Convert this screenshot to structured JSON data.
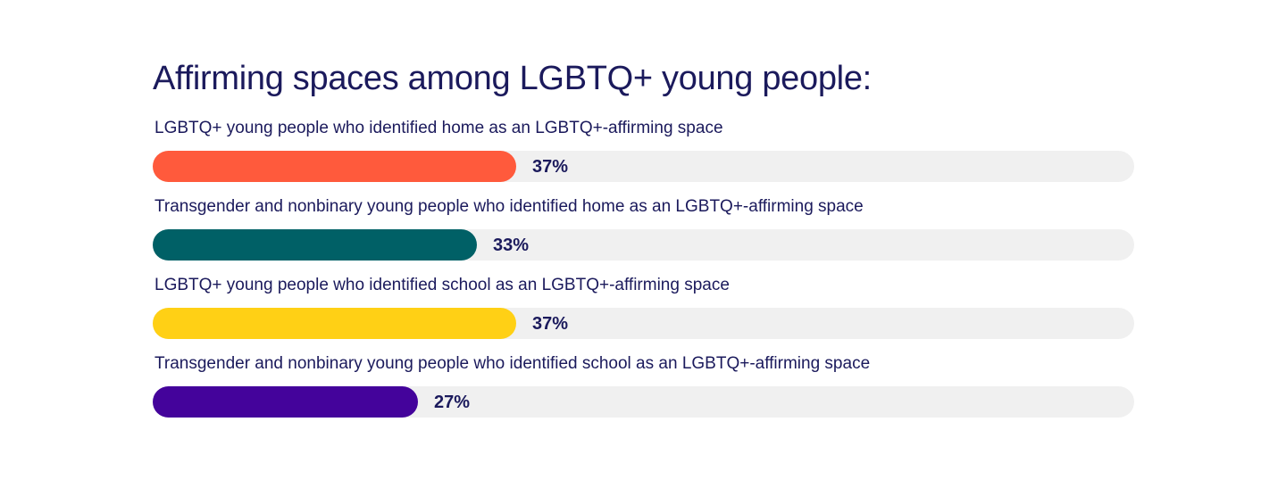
{
  "chart_data": {
    "type": "bar",
    "orientation": "horizontal",
    "title": "Affirming spaces among LGBTQ+ young people:",
    "xlim": [
      0,
      100
    ],
    "grid": false,
    "categories": [
      "LGBTQ+ young people who identified home as an LGBTQ+-affirming space",
      "Transgender and nonbinary young people who identified home as an LGBTQ+-affirming space",
      "LGBTQ+ young people who identified school as an LGBTQ+-affirming space",
      "Transgender and nonbinary young people who identified school as an LGBTQ+-affirming space"
    ],
    "values": [
      37,
      33,
      37,
      27
    ],
    "value_labels": [
      "37%",
      "33%",
      "37%",
      "27%"
    ],
    "colors": [
      "#ff5a3c",
      "#006066",
      "#ffd015",
      "#44039b"
    ],
    "track_color": "#f0f0f0"
  }
}
